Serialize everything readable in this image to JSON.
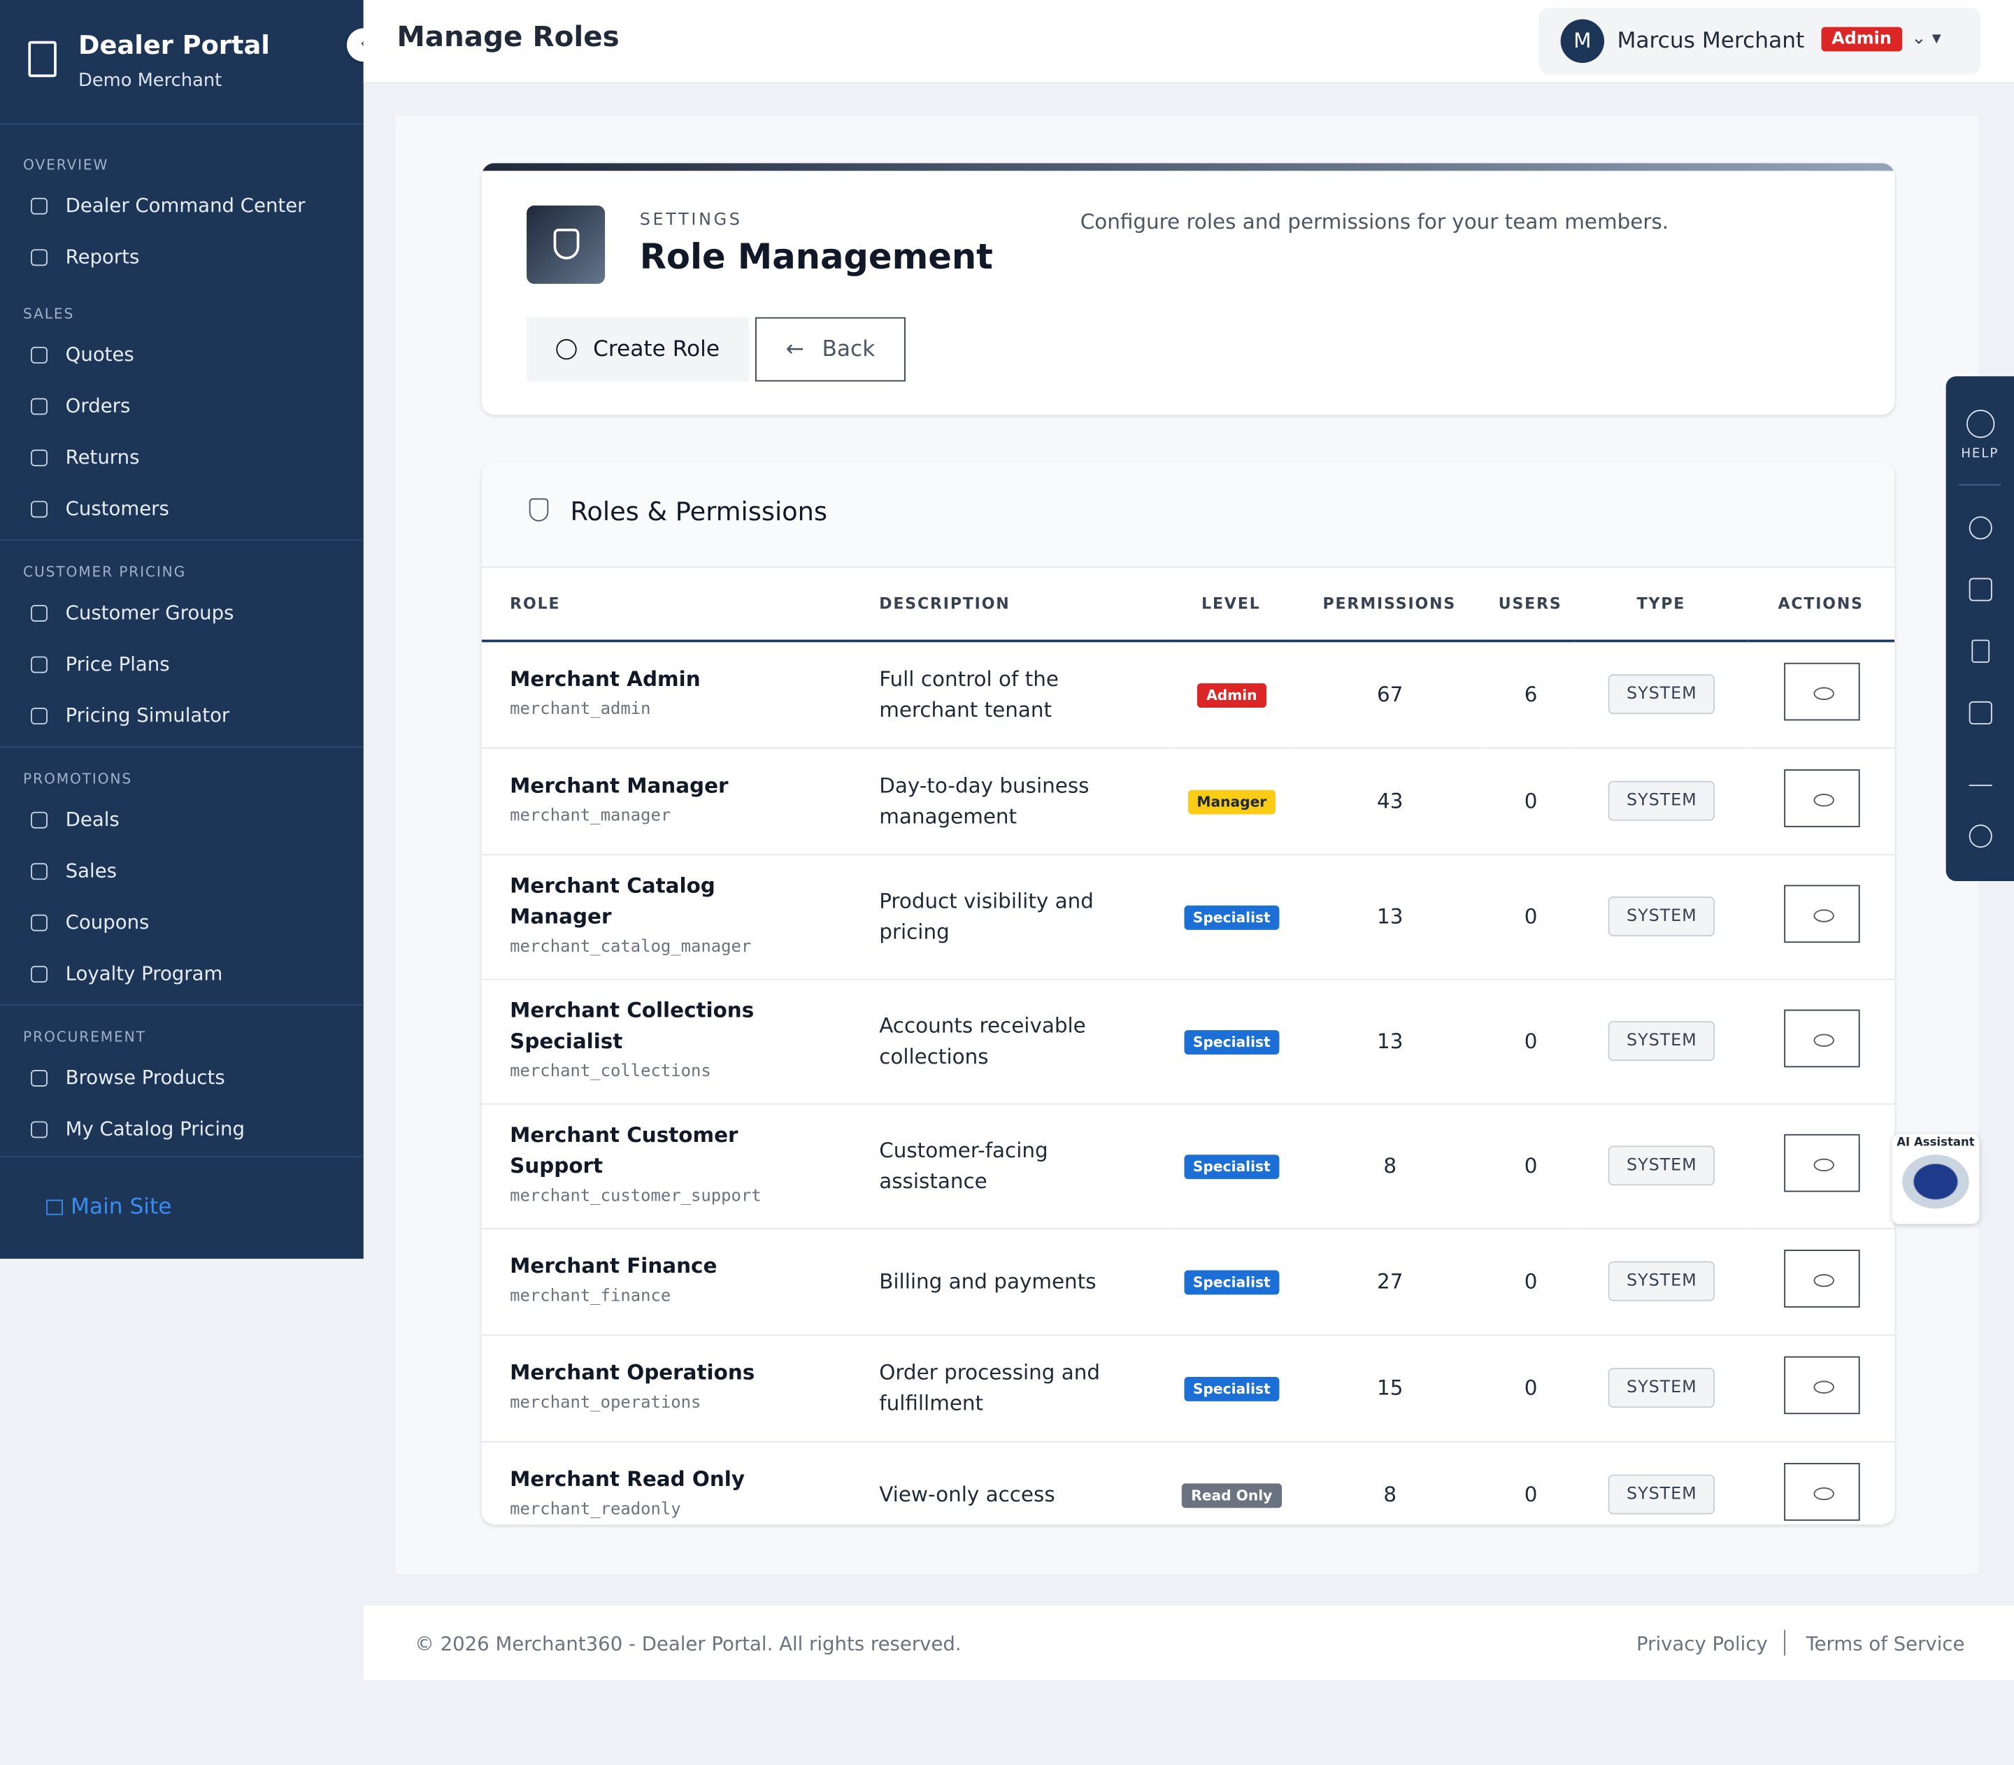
{
  "sidebar": {
    "title": "Dealer Portal",
    "subtitle": "Demo Merchant",
    "sections": [
      {
        "heading": "OVERVIEW",
        "items": [
          "Dealer Command Center",
          "Reports"
        ]
      },
      {
        "heading": "SALES",
        "items": [
          "Quotes",
          "Orders",
          "Returns",
          "Customers"
        ]
      },
      {
        "heading": "CUSTOMER PRICING",
        "items": [
          "Customer Groups",
          "Price Plans",
          "Pricing Simulator"
        ]
      },
      {
        "heading": "PROMOTIONS",
        "items": [
          "Deals",
          "Sales",
          "Coupons",
          "Loyalty Program"
        ]
      },
      {
        "heading": "PROCUREMENT",
        "items": [
          "Browse Products",
          "My Catalog Pricing"
        ]
      }
    ],
    "footer_link": "Main Site"
  },
  "header": {
    "title": "Manage Roles",
    "user": {
      "initial": "M",
      "name": "Marcus Merchant",
      "badge": "Admin"
    }
  },
  "settings_card": {
    "eyebrow": "SETTINGS",
    "title": "Role Management",
    "description": "Configure roles and permissions for your team members.",
    "buttons": [
      "Create Role",
      "Back"
    ]
  },
  "roles_table": {
    "title": "Roles & Permissions",
    "columns": [
      "ROLE",
      "DESCRIPTION",
      "LEVEL",
      "PERMISSIONS",
      "USERS",
      "TYPE",
      "ACTIONS"
    ],
    "rows": [
      {
        "name": "Merchant Admin",
        "key": "merchant_admin",
        "description": "Full control of the merchant tenant",
        "level": "Admin",
        "level_color": "#dc2626",
        "permissions": 67,
        "users": 6,
        "type": "SYSTEM"
      },
      {
        "name": "Merchant Manager",
        "key": "merchant_manager",
        "description": "Day-to-day business management",
        "level": "Manager",
        "level_color": "#facc15",
        "permissions": 43,
        "users": 0,
        "type": "SYSTEM"
      },
      {
        "name": "Merchant Catalog Manager",
        "key": "merchant_catalog_manager",
        "description": "Product visibility and pricing",
        "level": "Specialist",
        "level_color": "#1d6fd8",
        "permissions": 13,
        "users": 0,
        "type": "SYSTEM"
      },
      {
        "name": "Merchant Collections Specialist",
        "key": "merchant_collections",
        "description": "Accounts receivable collections",
        "level": "Specialist",
        "level_color": "#1d6fd8",
        "permissions": 13,
        "users": 0,
        "type": "SYSTEM"
      },
      {
        "name": "Merchant Customer Support",
        "key": "merchant_customer_support",
        "description": "Customer-facing assistance",
        "level": "Specialist",
        "level_color": "#1d6fd8",
        "permissions": 8,
        "users": 0,
        "type": "SYSTEM"
      },
      {
        "name": "Merchant Finance",
        "key": "merchant_finance",
        "description": "Billing and payments",
        "level": "Specialist",
        "level_color": "#1d6fd8",
        "permissions": 27,
        "users": 0,
        "type": "SYSTEM"
      },
      {
        "name": "Merchant Operations",
        "key": "merchant_operations",
        "description": "Order processing and fulfillment",
        "level": "Specialist",
        "level_color": "#1d6fd8",
        "permissions": 15,
        "users": 0,
        "type": "SYSTEM"
      },
      {
        "name": "Merchant Read Only",
        "key": "merchant_readonly",
        "description": "View-only access",
        "level": "Read Only",
        "level_color": "#6b7280",
        "permissions": 8,
        "users": 0,
        "type": "SYSTEM"
      }
    ]
  },
  "right_rail": {
    "help": "HELP"
  },
  "assistant": {
    "label": "AI Assistant"
  },
  "footer": {
    "copyright": "© 2026 Merchant360 - Dealer Portal. All rights reserved.",
    "links": [
      "Privacy Policy",
      "Terms of Service"
    ]
  }
}
